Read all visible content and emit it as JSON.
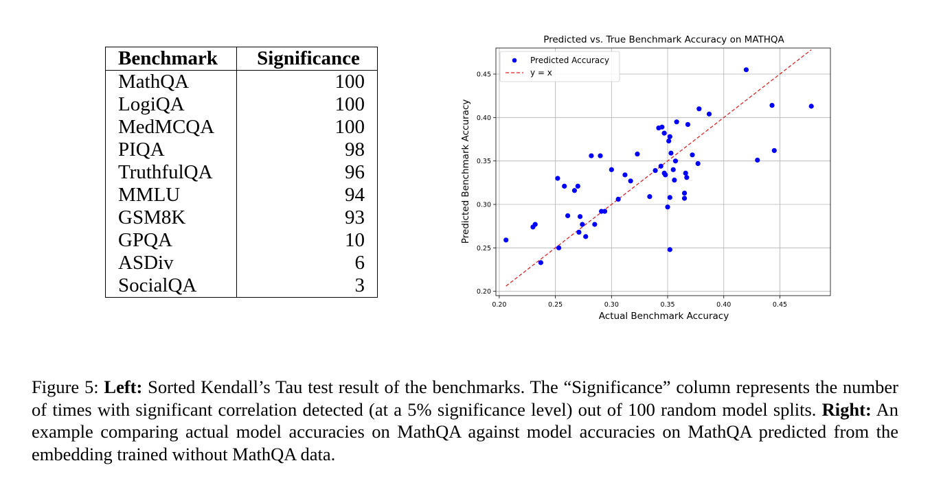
{
  "table": {
    "headers": [
      "Benchmark",
      "Significance"
    ],
    "rows": [
      [
        "MathQA",
        "100"
      ],
      [
        "LogiQA",
        "100"
      ],
      [
        "MedMCQA",
        "100"
      ],
      [
        "PIQA",
        "98"
      ],
      [
        "TruthfulQA",
        "96"
      ],
      [
        "MMLU",
        "94"
      ],
      [
        "GSM8K",
        "93"
      ],
      [
        "GPQA",
        "10"
      ],
      [
        "ASDiv",
        "6"
      ],
      [
        "SocialQA",
        "3"
      ]
    ]
  },
  "chart_data": {
    "type": "scatter",
    "title": "Predicted vs. True Benchmark Accuracy on MATHQA",
    "xlabel": "Actual Benchmark Accuracy",
    "ylabel": "Predicted Benchmark Accuracy",
    "xlim": [
      0.197,
      0.495
    ],
    "ylim": [
      0.195,
      0.48
    ],
    "xticks": [
      "0.20",
      "0.25",
      "0.30",
      "0.35",
      "0.40",
      "0.45"
    ],
    "yticks": [
      "0.20",
      "0.25",
      "0.30",
      "0.35",
      "0.40",
      "0.45"
    ],
    "grid": true,
    "legend_position": "top-left",
    "series": [
      {
        "name": "Predicted Accuracy",
        "color": "#0000ff",
        "points": [
          [
            0.206,
            0.259
          ],
          [
            0.23,
            0.274
          ],
          [
            0.232,
            0.277
          ],
          [
            0.237,
            0.233
          ],
          [
            0.252,
            0.33
          ],
          [
            0.253,
            0.25
          ],
          [
            0.258,
            0.321
          ],
          [
            0.261,
            0.287
          ],
          [
            0.267,
            0.316
          ],
          [
            0.27,
            0.321
          ],
          [
            0.271,
            0.268
          ],
          [
            0.272,
            0.286
          ],
          [
            0.274,
            0.277
          ],
          [
            0.277,
            0.263
          ],
          [
            0.282,
            0.356
          ],
          [
            0.285,
            0.277
          ],
          [
            0.29,
            0.356
          ],
          [
            0.291,
            0.292
          ],
          [
            0.294,
            0.292
          ],
          [
            0.3,
            0.34
          ],
          [
            0.306,
            0.306
          ],
          [
            0.312,
            0.334
          ],
          [
            0.317,
            0.327
          ],
          [
            0.323,
            0.358
          ],
          [
            0.334,
            0.309
          ],
          [
            0.339,
            0.339
          ],
          [
            0.342,
            0.388
          ],
          [
            0.344,
            0.344
          ],
          [
            0.345,
            0.389
          ],
          [
            0.347,
            0.336
          ],
          [
            0.347,
            0.382
          ],
          [
            0.348,
            0.334
          ],
          [
            0.35,
            0.297
          ],
          [
            0.351,
            0.373
          ],
          [
            0.352,
            0.378
          ],
          [
            0.352,
            0.248
          ],
          [
            0.352,
            0.308
          ],
          [
            0.353,
            0.359
          ],
          [
            0.355,
            0.34
          ],
          [
            0.356,
            0.328
          ],
          [
            0.357,
            0.35
          ],
          [
            0.358,
            0.395
          ],
          [
            0.365,
            0.307
          ],
          [
            0.365,
            0.313
          ],
          [
            0.366,
            0.336
          ],
          [
            0.367,
            0.331
          ],
          [
            0.368,
            0.392
          ],
          [
            0.372,
            0.357
          ],
          [
            0.377,
            0.347
          ],
          [
            0.378,
            0.41
          ],
          [
            0.387,
            0.404
          ],
          [
            0.42,
            0.455
          ],
          [
            0.43,
            0.351
          ],
          [
            0.443,
            0.414
          ],
          [
            0.445,
            0.362
          ],
          [
            0.478,
            0.413
          ]
        ]
      },
      {
        "name": "y = x",
        "color": "#d62728",
        "line": [
          [
            0.206,
            0.206
          ],
          [
            0.478,
            0.478
          ]
        ]
      }
    ]
  },
  "caption": {
    "label": "Figure 5: ",
    "left_label": "Left:",
    "left_text": " Sorted Kendall’s Tau test result of the benchmarks. The “Significance” column represents the number of times with significant correlation detected (at a 5% significance level) out of 100 random model splits. ",
    "right_label": "Right:",
    "right_text": " An example comparing actual model accuracies on MathQA against model accuracies on MathQA predicted from the embedding trained without MathQA data."
  }
}
